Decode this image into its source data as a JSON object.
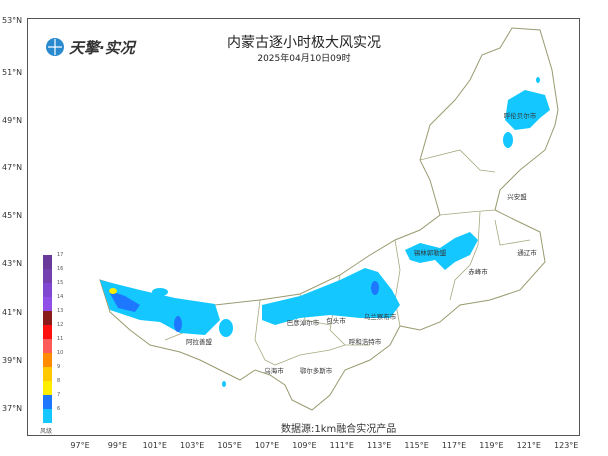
{
  "title": "内蒙古逐小时极大风实况",
  "subtitle": "2025年04月10日09时",
  "logo": "天擎·实况",
  "source": "数据源:1km融合实况产品",
  "lat_labels": [
    "53°N",
    "51°N",
    "49°N",
    "47°N",
    "45°N",
    "43°N",
    "41°N",
    "39°N",
    "37°N"
  ],
  "lon_labels": [
    "97°E",
    "99°E",
    "101°E",
    "103°E",
    "105°E",
    "107°E",
    "109°E",
    "111°E",
    "113°E",
    "115°E",
    "117°E",
    "119°E",
    "121°E",
    "123°E"
  ],
  "legend": {
    "title": "风级",
    "levels": [
      {
        "level": "17",
        "color": "#6a3a9a"
      },
      {
        "level": "16",
        "color": "#7440b0"
      },
      {
        "level": "15",
        "color": "#8048d0"
      },
      {
        "level": "14",
        "color": "#9050e8"
      },
      {
        "level": "13",
        "color": "#8b1a1a"
      },
      {
        "level": "12",
        "color": "#ff1010"
      },
      {
        "level": "11",
        "color": "#ff5a5a"
      },
      {
        "level": "10",
        "color": "#ff8c00"
      },
      {
        "level": "9",
        "color": "#ffc800"
      },
      {
        "level": "8",
        "color": "#ffee00"
      },
      {
        "level": "7",
        "color": "#1e78ff"
      },
      {
        "level": "6",
        "color": "#14c8ff"
      }
    ]
  },
  "cities": [
    "呼伦贝尔市",
    "兴安盟",
    "通辽市",
    "赤峰市",
    "锡林郭勒盟",
    "乌兰察布市",
    "包头市",
    "巴彦淖尔市",
    "呼和浩特市",
    "阿拉善盟",
    "乌海市",
    "鄂尔多斯市"
  ]
}
